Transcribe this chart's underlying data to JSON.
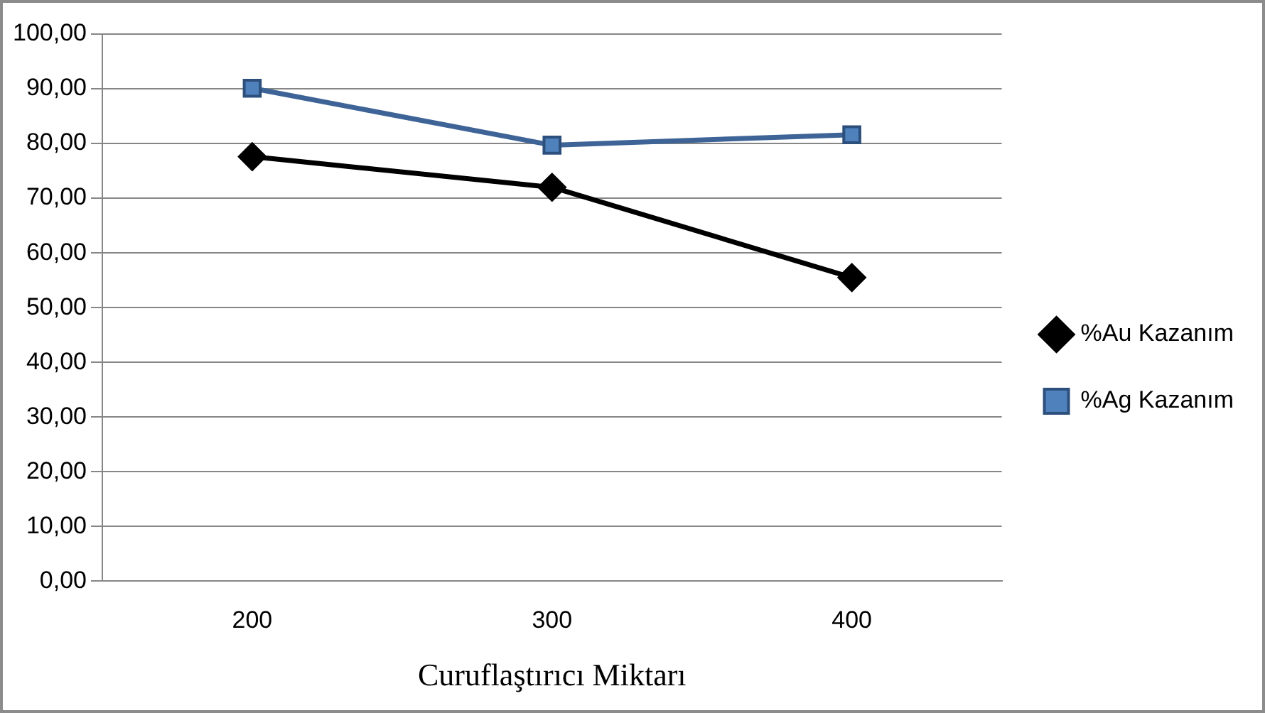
{
  "chart_data": {
    "type": "line",
    "xlabel": "Curuflaştırıcı Miktarı",
    "categories": [
      "200",
      "300",
      "400"
    ],
    "series": [
      {
        "name": "%Au Kazanım",
        "color": "#000000",
        "marker": "diamond",
        "values": [
          77.6,
          72.0,
          55.5
        ]
      },
      {
        "name": "%Ag Kazanım",
        "color": "#3e6497",
        "marker": "square",
        "values": [
          90.1,
          79.7,
          81.6
        ]
      }
    ],
    "ylim": [
      0,
      100
    ],
    "yticks": [
      {
        "value": 0,
        "label": "0,00"
      },
      {
        "value": 10,
        "label": "10,00"
      },
      {
        "value": 20,
        "label": "20,00"
      },
      {
        "value": 30,
        "label": "30,00"
      },
      {
        "value": 40,
        "label": "40,00"
      },
      {
        "value": 50,
        "label": "50,00"
      },
      {
        "value": 60,
        "label": "60,00"
      },
      {
        "value": 70,
        "label": "70,00"
      },
      {
        "value": 80,
        "label": "80,00"
      },
      {
        "value": 90,
        "label": "90,00"
      },
      {
        "value": 100,
        "label": "100,00"
      }
    ],
    "grid": "y",
    "legend": "right",
    "line_style": "solid"
  }
}
